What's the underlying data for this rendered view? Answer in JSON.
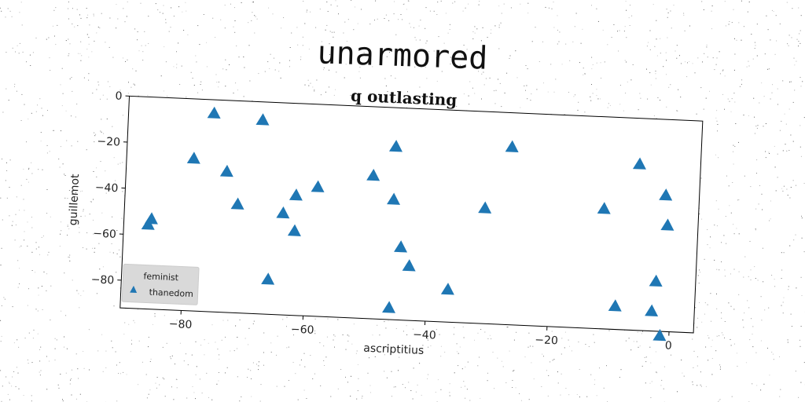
{
  "figure": {
    "suptitle": "unarmored"
  },
  "chart_data": {
    "type": "scatter",
    "title": "q outlasting",
    "xlabel": "ascriptitius",
    "ylabel": "guillemot",
    "xlim": [
      -90,
      4
    ],
    "ylim": [
      -92,
      0
    ],
    "xticks": [
      -80,
      -60,
      -40,
      -20,
      0
    ],
    "yticks": [
      0,
      -20,
      -40,
      -60,
      -80
    ],
    "xtick_labels": [
      "−80",
      "−60",
      "−40",
      "−20",
      "0"
    ],
    "ytick_labels": [
      "0",
      "−20",
      "−40",
      "−60",
      "−80"
    ],
    "grid": false,
    "legend": {
      "placement": "lower-left",
      "entries": [
        {
          "label": "feminist",
          "marker": "none"
        },
        {
          "label": "thanedom",
          "marker": "triangle",
          "color": "#1f77b4"
        }
      ]
    },
    "series": [
      {
        "name": "thanedom",
        "marker": "triangle",
        "color": "#1f77b4",
        "points": [
          [
            -76,
            -6
          ],
          [
            -68,
            -8
          ],
          [
            -79,
            -26
          ],
          [
            -73.5,
            -31
          ],
          [
            -71.5,
            -45
          ],
          [
            -85.5,
            -53
          ],
          [
            -86,
            -55.5
          ],
          [
            -66,
            -77
          ],
          [
            -64,
            -48
          ],
          [
            -62,
            -40
          ],
          [
            -62,
            -55.5
          ],
          [
            -58.5,
            -36
          ],
          [
            -49.5,
            -30
          ],
          [
            -46,
            -17
          ],
          [
            -46,
            -40
          ],
          [
            -44.5,
            -60.5
          ],
          [
            -43,
            -68.5
          ],
          [
            -46,
            -87
          ],
          [
            -36.5,
            -78
          ],
          [
            -31,
            -42
          ],
          [
            -27,
            -15
          ],
          [
            -11.5,
            -40
          ],
          [
            -6,
            -20
          ],
          [
            -1.5,
            -33
          ],
          [
            -1,
            -46
          ],
          [
            -2.5,
            -70.5
          ],
          [
            -9,
            -82
          ],
          [
            -3,
            -83.5
          ],
          [
            -1.5,
            -94
          ]
        ]
      }
    ]
  }
}
